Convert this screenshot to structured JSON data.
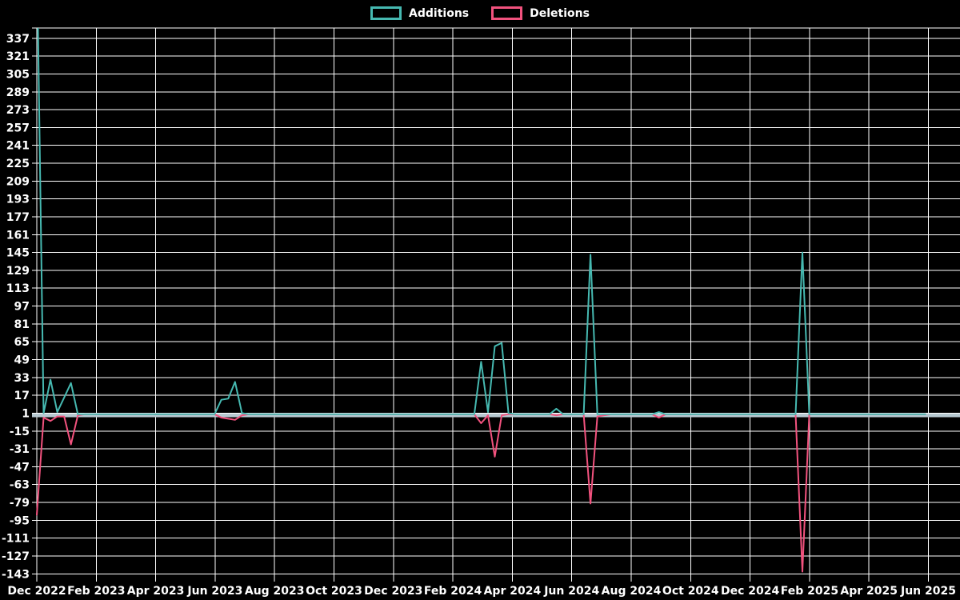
{
  "legend": {
    "position": "top-center",
    "items": [
      {
        "label": "Additions",
        "color": "#46b9b1"
      },
      {
        "label": "Deletions",
        "color": "#f2527e"
      }
    ]
  },
  "chart_data": {
    "type": "line",
    "title": "",
    "xlabel": "",
    "ylabel": "",
    "background_color": "#000000",
    "grid_color": "#ffffff",
    "text_color": "#ffffff",
    "grid": true,
    "legend_position": "top",
    "x_unit": "week",
    "weeks_total": 130,
    "x_tick_labels": [
      "Dec 2022",
      "Feb 2023",
      "Apr 2023",
      "Jun 2023",
      "Aug 2023",
      "Oct 2023",
      "Dec 2023",
      "Feb 2024",
      "Apr 2024",
      "Jun 2024",
      "Aug 2024",
      "Oct 2024",
      "Dec 2024",
      "Feb 2025",
      "Apr 2025",
      "Jun 2025"
    ],
    "y_axis": {
      "min": -143,
      "max": 337,
      "step": 16
    },
    "y_tick_labels": [
      337,
      321,
      305,
      289,
      273,
      257,
      241,
      225,
      209,
      193,
      177,
      161,
      145,
      129,
      113,
      97,
      81,
      65,
      49,
      33,
      17,
      1,
      -15,
      -31,
      -47,
      -63,
      -79,
      -95,
      -111,
      -127,
      -143
    ],
    "zero_baseline": {
      "value": 0,
      "color": "#b7c9d1"
    },
    "series": [
      {
        "name": "Additions",
        "color": "#46b9b1",
        "base_value": 0,
        "points": [
          [
            0,
            420
          ],
          [
            1,
            1
          ],
          [
            2,
            31
          ],
          [
            3,
            2
          ],
          [
            4,
            15
          ],
          [
            5,
            28
          ],
          [
            27,
            13
          ],
          [
            28,
            14
          ],
          [
            29,
            29
          ],
          [
            30,
            1
          ],
          [
            65,
            47
          ],
          [
            66,
            2
          ],
          [
            67,
            61
          ],
          [
            68,
            64
          ],
          [
            69,
            1
          ],
          [
            76,
            5
          ],
          [
            81,
            143
          ],
          [
            91,
            2
          ],
          [
            112,
            145
          ]
        ]
      },
      {
        "name": "Deletions",
        "color": "#f2527e",
        "base_value": 0,
        "points": [
          [
            0,
            -90
          ],
          [
            1,
            -3
          ],
          [
            2,
            -6
          ],
          [
            3,
            -2
          ],
          [
            4,
            -2
          ],
          [
            5,
            -27
          ],
          [
            6,
            -1
          ],
          [
            27,
            -3
          ],
          [
            28,
            -4
          ],
          [
            29,
            -5
          ],
          [
            30,
            -1
          ],
          [
            65,
            -8
          ],
          [
            66,
            -1
          ],
          [
            67,
            -38
          ],
          [
            68,
            -1
          ],
          [
            76,
            -1
          ],
          [
            81,
            -80
          ],
          [
            82,
            -2
          ],
          [
            83,
            -1
          ],
          [
            91,
            -3
          ],
          [
            112,
            -141
          ]
        ]
      }
    ]
  }
}
